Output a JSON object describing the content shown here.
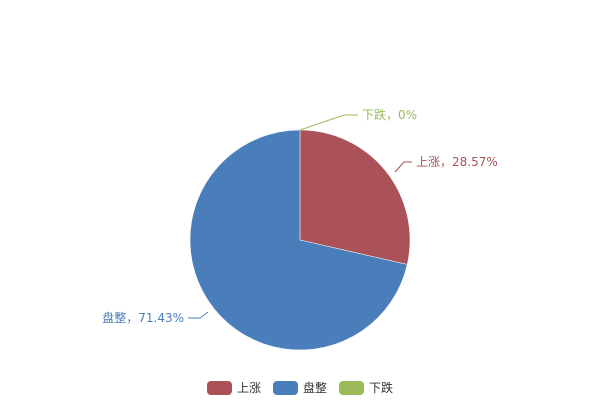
{
  "chart_data": {
    "type": "pie",
    "series": [
      {
        "name": "上涨",
        "value": 28.57,
        "label": "上涨，28.57%",
        "color": "#AA5257"
      },
      {
        "name": "盘整",
        "value": 71.43,
        "label": "盘整，71.43%",
        "color": "#4A7EBB"
      },
      {
        "name": "下跌",
        "value": 0,
        "label": "下跌，0%",
        "color": "#9BBB59"
      }
    ],
    "legend_position": "bottom"
  }
}
